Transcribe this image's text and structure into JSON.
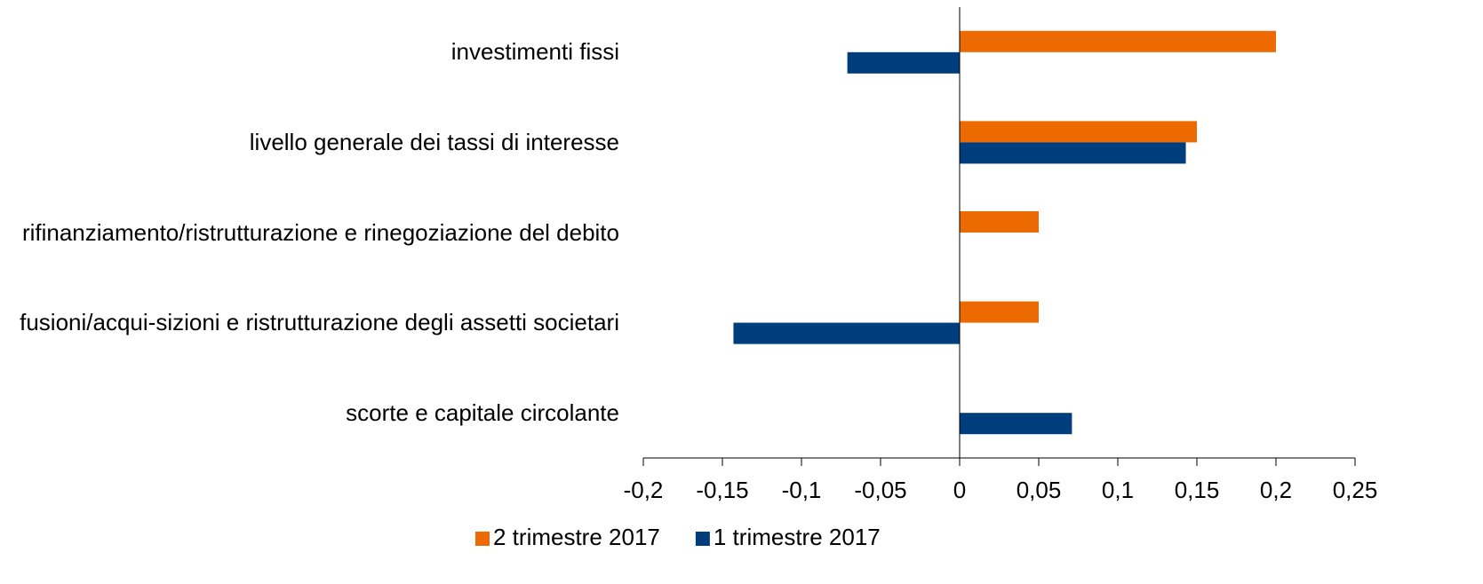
{
  "chart_data": {
    "type": "hbar",
    "categories": [
      "investimenti fissi",
      "livello generale dei tassi di interesse",
      "rifinanziamento/ristrutturazione e rinegoziazione del debito",
      "fusioni/acqui-sizioni e ristrutturazione degli assetti societari",
      "scorte e capitale circolante"
    ],
    "series": [
      {
        "name": "2 trimestre 2017",
        "color": "#ed6a02",
        "values": [
          0.2,
          0.15,
          0.05,
          0.05,
          0
        ]
      },
      {
        "name": "1 trimestre 2017",
        "color": "#003d7c",
        "values": [
          -0.071,
          0.143,
          0,
          -0.143,
          0.071
        ]
      }
    ],
    "xlim": [
      -0.2,
      0.25
    ],
    "xticks": [
      {
        "value": -0.2,
        "label": "-0,2"
      },
      {
        "value": -0.15,
        "label": "-0,15"
      },
      {
        "value": -0.1,
        "label": "-0,1"
      },
      {
        "value": -0.05,
        "label": "-0,05"
      },
      0,
      {
        "value": 0.05,
        "label": "0,05"
      },
      {
        "value": 0.1,
        "label": "0,1"
      },
      {
        "value": 0.15,
        "label": "0,15"
      },
      {
        "value": 0.2,
        "label": "0,2"
      },
      {
        "value": 0.25,
        "label": "0,25"
      }
    ],
    "legend": "bottom"
  }
}
